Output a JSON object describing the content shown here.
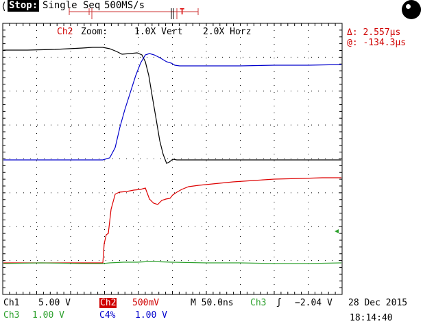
{
  "header": {
    "back_glyph": "⟨",
    "run_state": "Stop:",
    "acq_mode": "Single Seq",
    "sample_rate": "500MS/s",
    "trigger_marker": "T"
  },
  "zoom": {
    "channel": "Ch2",
    "label": "Zoom:",
    "vertical": "1.0X Vert",
    "horizontal": "2.0X Horz"
  },
  "cursors": {
    "delta": "Δ: 2.557µs",
    "at": "@: -134.3µs"
  },
  "footer": {
    "ch1_label": "Ch1",
    "ch1_scale": "5.00 V",
    "ch2_label": "Ch2",
    "ch2_scale": "500mV",
    "timebase": "M 50.0ns",
    "trigger_source": "Ch3",
    "trigger_slope": "ʃ",
    "trigger_level": "−2.04 V",
    "ch3_label": "Ch3",
    "ch3_scale": "1.00 V",
    "c4_label": "C4%",
    "c4_scale": "1.00 V",
    "date": "28 Dec 2015",
    "time": "18:14:40"
  },
  "colors": {
    "ch1": "#000000",
    "ch2": "#dd0000",
    "ch3": "#2ca02c",
    "ch4": "#0000cc",
    "grid": "#000000"
  }
}
